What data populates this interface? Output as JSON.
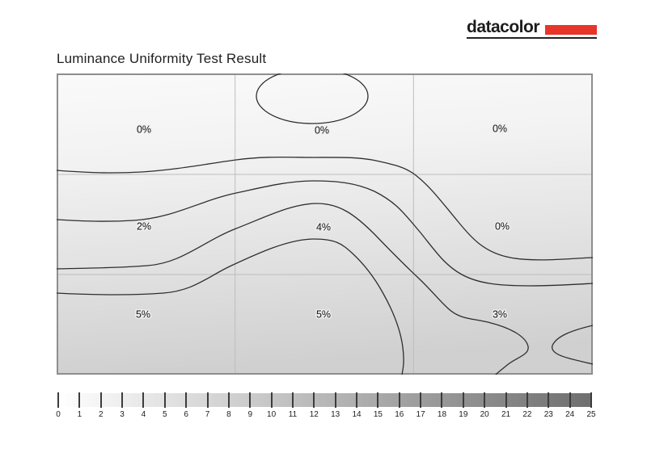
{
  "header": {
    "logo_text": "datacolor",
    "logo_accent_color": "#e8352a"
  },
  "page_title": "Luminance Uniformity Test Result",
  "chart_data": {
    "type": "heatmap",
    "title": "Luminance Uniformity Test Result",
    "grid": {
      "rows": 3,
      "cols": 3
    },
    "cells": [
      [
        "0%",
        "0%",
        "0%"
      ],
      [
        "2%",
        "4%",
        "0%"
      ],
      [
        "5%",
        "5%",
        "3%"
      ]
    ],
    "cell_values_percent": [
      [
        0,
        0,
        0
      ],
      [
        2,
        4,
        0
      ],
      [
        5,
        5,
        3
      ]
    ],
    "contour_style": "iso-deviation lines over shaded luminance field",
    "colorbar": {
      "min": 0,
      "max": 25,
      "ticks": [
        "0",
        "1",
        "2",
        "3",
        "4",
        "5",
        "6",
        "7",
        "8",
        "9",
        "10",
        "11",
        "12",
        "13",
        "14",
        "15",
        "16",
        "17",
        "18",
        "19",
        "20",
        "21",
        "22",
        "23",
        "24",
        "25"
      ],
      "start_color": "#ffffff",
      "end_color": "#6f6f6f",
      "position": "bottom"
    }
  }
}
